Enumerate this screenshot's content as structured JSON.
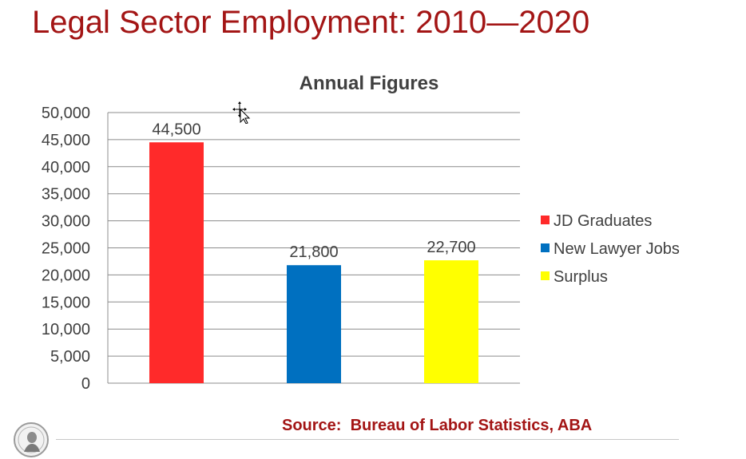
{
  "slide": {
    "title": "Legal Sector Employment: 2010—2020",
    "source": "Source:  Bureau of Labor Statistics, ABA",
    "logo_icon": "seal-logo-icon",
    "cursor_icon": "move-cursor-icon"
  },
  "chart_data": {
    "type": "bar",
    "title": "Annual Figures",
    "xlabel": "",
    "ylabel": "",
    "ylim": [
      0,
      50000
    ],
    "ytick_step": 5000,
    "ytick_labels": [
      "0",
      "5,000",
      "10,000",
      "15,000",
      "20,000",
      "25,000",
      "30,000",
      "35,000",
      "40,000",
      "45,000",
      "50,000"
    ],
    "grid": true,
    "legend_position": "right",
    "series": [
      {
        "name": "JD Graduates",
        "value": 44500,
        "label": "44,500",
        "color": "#ff2a2a"
      },
      {
        "name": "New Lawyer Jobs",
        "value": 21800,
        "label": "21,800",
        "color": "#0070c0"
      },
      {
        "name": "Surplus",
        "value": 22700,
        "label": "22,700",
        "color": "#ffff00"
      }
    ]
  }
}
